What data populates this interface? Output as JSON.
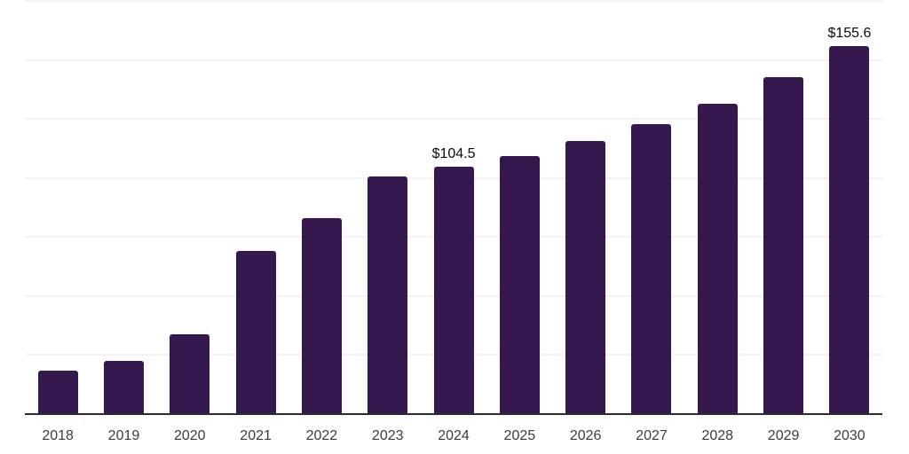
{
  "chart_data": {
    "type": "bar",
    "title": "",
    "xlabel": "",
    "ylabel": "",
    "categories": [
      "2018",
      "2019",
      "2020",
      "2021",
      "2022",
      "2023",
      "2024",
      "2025",
      "2026",
      "2027",
      "2028",
      "2029",
      "2030"
    ],
    "values": [
      18.2,
      22.0,
      33.3,
      68.6,
      82.6,
      100.2,
      104.5,
      109.0,
      115.2,
      122.4,
      131.2,
      142.2,
      155.6
    ],
    "data_labels": [
      "",
      "",
      "",
      "",
      "",
      "",
      "$104.5",
      "",
      "",
      "",
      "",
      "",
      "$155.6"
    ],
    "ylim": [
      0,
      175
    ],
    "gridline_step": 25,
    "grid": true,
    "legend": "none",
    "y_axis_labels_visible": false,
    "colors": {
      "bar": "#35184E",
      "axis": "#2B2B2B",
      "gridline": "#F2F2F2",
      "tick_label": "#3C3C3C",
      "data_label": "#0A0A0A",
      "background": "#FFFFFF"
    }
  }
}
